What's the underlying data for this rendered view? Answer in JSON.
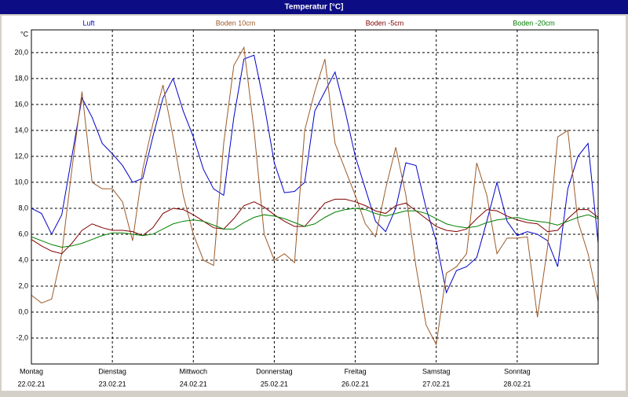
{
  "chart_data": {
    "type": "line",
    "title": "Temperatur [°C]",
    "y_unit": "°C",
    "x": [
      0,
      3,
      6,
      9,
      12,
      15,
      18,
      21,
      24,
      27,
      30,
      33,
      36,
      39,
      42,
      45,
      48,
      51,
      54,
      57,
      60,
      63,
      66,
      69,
      72,
      75,
      78,
      81,
      84,
      87,
      90,
      93,
      96,
      99,
      102,
      105,
      108,
      111,
      114,
      117,
      120,
      123,
      126,
      129,
      132,
      135,
      138,
      141,
      144,
      147,
      150,
      153,
      156,
      159,
      162,
      165,
      168
    ],
    "xlim": [
      0,
      168
    ],
    "xticks": [
      {
        "value": 0,
        "label": "Montag",
        "date": "22.02.21"
      },
      {
        "value": 24,
        "label": "Dienstag",
        "date": "23.02.21"
      },
      {
        "value": 48,
        "label": "Mittwoch",
        "date": "24.02.21"
      },
      {
        "value": 72,
        "label": "Donnerstag",
        "date": "25.02.21"
      },
      {
        "value": 96,
        "label": "Freitag",
        "date": "26.02.21"
      },
      {
        "value": 120,
        "label": "Samstag",
        "date": "27.02.21"
      },
      {
        "value": 144,
        "label": "Sonntag",
        "date": "28.02.21"
      }
    ],
    "ylim": [
      -4,
      21.75
    ],
    "yticks": [
      {
        "value": -2,
        "label": "-2,0"
      },
      {
        "value": 0,
        "label": "0,0"
      },
      {
        "value": 2,
        "label": "2,0"
      },
      {
        "value": 4,
        "label": "4,0"
      },
      {
        "value": 6,
        "label": "6,0"
      },
      {
        "value": 8,
        "label": "8,0"
      },
      {
        "value": 10,
        "label": "10,0"
      },
      {
        "value": 12,
        "label": "12,0"
      },
      {
        "value": 14,
        "label": "14,0"
      },
      {
        "value": 16,
        "label": "16,0"
      },
      {
        "value": 18,
        "label": "18,0"
      },
      {
        "value": 20,
        "label": "20,0"
      }
    ],
    "grid": true,
    "series": [
      {
        "name": "Luft",
        "color": "#0000c8",
        "values": [
          8.0,
          7.6,
          6.0,
          7.5,
          12,
          16.5,
          15,
          13,
          12.2,
          11.3,
          10,
          10.3,
          13.5,
          16.5,
          18,
          15.5,
          13.5,
          11,
          9.5,
          9,
          15,
          19.5,
          19.8,
          16,
          11.5,
          9.2,
          9.3,
          10,
          15.5,
          17,
          18.5,
          15.5,
          12,
          9.5,
          7,
          6.2,
          8,
          11.5,
          11.3,
          8,
          5.5,
          1.5,
          3.2,
          3.5,
          4.2,
          7,
          10,
          7,
          5.9,
          6.2,
          6,
          5.5,
          3.5,
          9.5,
          12,
          13,
          5.3
        ]
      },
      {
        "name": "Boden 10cm",
        "color": "#9c5a28",
        "values": [
          1.3,
          0.7,
          1.0,
          4.5,
          11,
          17,
          10,
          9.5,
          9.5,
          8.5,
          5.5,
          11,
          14.5,
          17.5,
          13.5,
          9,
          6,
          4,
          3.6,
          13,
          19,
          20.4,
          14,
          6,
          4,
          4.5,
          3.8,
          14,
          17,
          19.5,
          13,
          11,
          9,
          6.8,
          5.8,
          9.5,
          12.7,
          9,
          3.5,
          -1,
          -2.5,
          3,
          3.5,
          4.5,
          11.5,
          9,
          4.5,
          5.7,
          5.7,
          5.8,
          -0.4,
          5,
          13.5,
          14,
          7,
          4.5,
          0.8
        ]
      },
      {
        "name": "Boden -5cm",
        "color": "#800000",
        "values": [
          5.6,
          5.1,
          4.7,
          4.5,
          5.3,
          6.3,
          6.8,
          6.5,
          6.3,
          6.3,
          6.2,
          5.9,
          6.5,
          7.6,
          8,
          7.9,
          7.5,
          7,
          6.5,
          6.4,
          7.2,
          8.2,
          8.5,
          8.1,
          7.5,
          7,
          6.6,
          6.6,
          7.5,
          8.4,
          8.7,
          8.7,
          8.5,
          8.2,
          7.8,
          7.6,
          8.2,
          8.4,
          7.8,
          7.2,
          6.6,
          6.3,
          6.2,
          6.4,
          7.2,
          7.9,
          7.8,
          7.4,
          7.1,
          6.9,
          6.8,
          6.2,
          6.3,
          7.2,
          7.9,
          7.9,
          7.3
        ]
      },
      {
        "name": "Boden -20cm",
        "color": "#008000",
        "values": [
          5.8,
          5.5,
          5.2,
          5.0,
          5.1,
          5.3,
          5.6,
          5.9,
          6.1,
          6.1,
          6.0,
          5.9,
          6.0,
          6.4,
          6.8,
          7.0,
          7.1,
          7.0,
          6.7,
          6.4,
          6.4,
          6.9,
          7.3,
          7.5,
          7.4,
          7.2,
          6.9,
          6.6,
          6.8,
          7.3,
          7.7,
          7.9,
          8.0,
          7.9,
          7.6,
          7.4,
          7.6,
          7.8,
          7.8,
          7.6,
          7.2,
          6.8,
          6.6,
          6.5,
          6.6,
          6.9,
          7.1,
          7.2,
          7.3,
          7.1,
          7.0,
          6.9,
          6.7,
          7.0,
          7.3,
          7.5,
          7.2
        ]
      }
    ]
  }
}
